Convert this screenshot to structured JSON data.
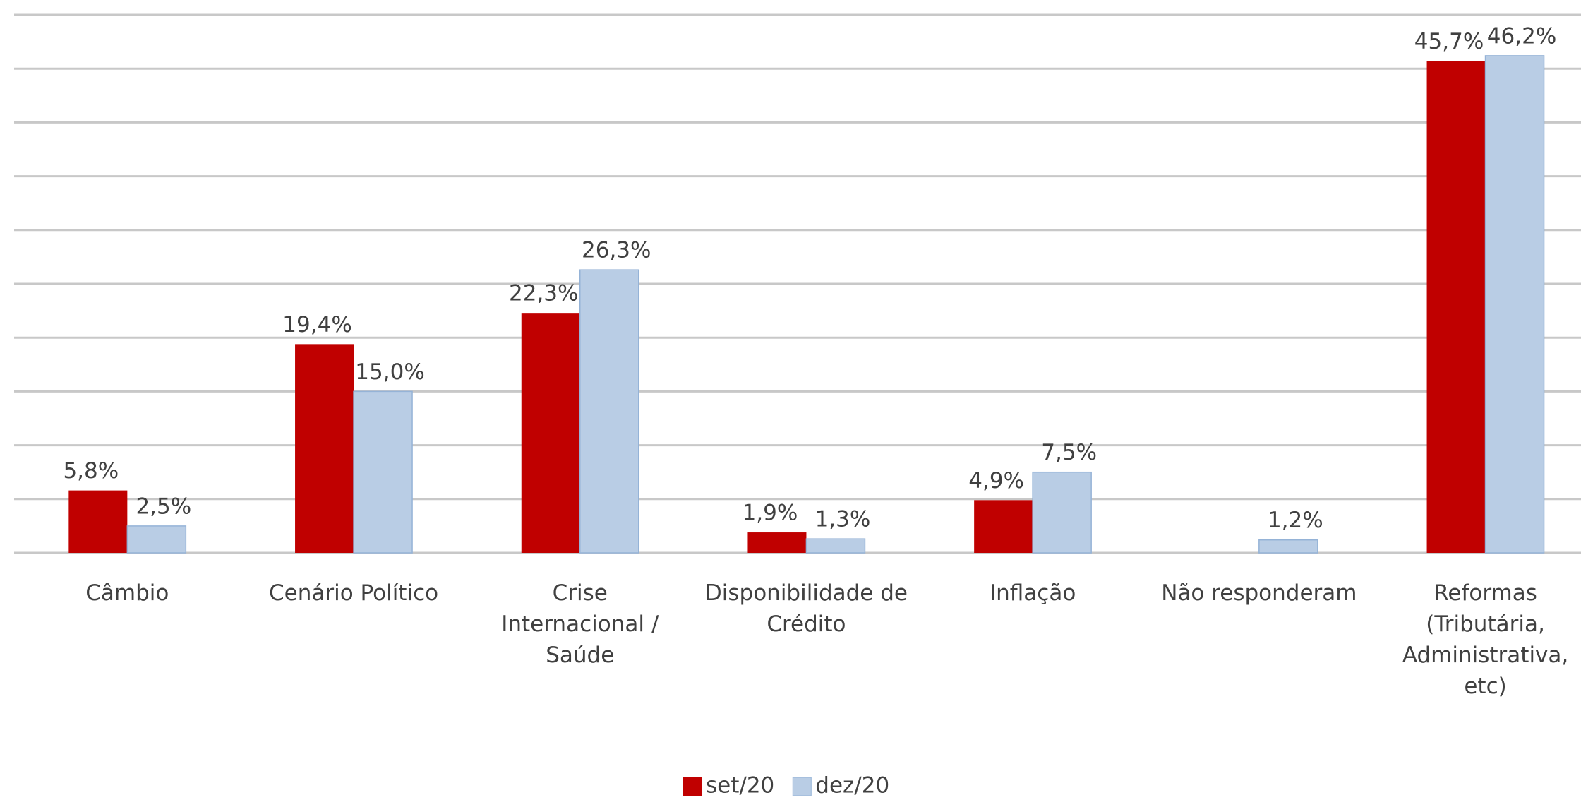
{
  "chart_data": {
    "type": "bar",
    "categories": [
      "Câmbio",
      "Cenário Político",
      "Crise Internacional / Saúde",
      "Disponibilidade de Crédito",
      "Inflação",
      "Não responderam",
      "Reformas (Tributária, Administrativa, etc)"
    ],
    "series": [
      {
        "name": "set/20",
        "color": "#c00000",
        "values": [
          5.8,
          19.4,
          22.3,
          1.9,
          4.9,
          null,
          45.7
        ],
        "value_labels": [
          "5,8%",
          "19,4%",
          "22,3%",
          "1,9%",
          "4,9%",
          null,
          "45,7%"
        ]
      },
      {
        "name": "dez/20",
        "color": "#b9cde5",
        "values": [
          2.5,
          15.0,
          26.3,
          1.3,
          7.5,
          1.2,
          46.2
        ],
        "value_labels": [
          "2,5%",
          "15,0%",
          "26,3%",
          "1,3%",
          "7,5%",
          "1,2%",
          "46,2%"
        ]
      }
    ],
    "ylim": [
      0,
      50
    ],
    "yticks": [
      0,
      5,
      10,
      15,
      20,
      25,
      30,
      35,
      40,
      45,
      50
    ],
    "grid": true,
    "legend": "bottom"
  }
}
